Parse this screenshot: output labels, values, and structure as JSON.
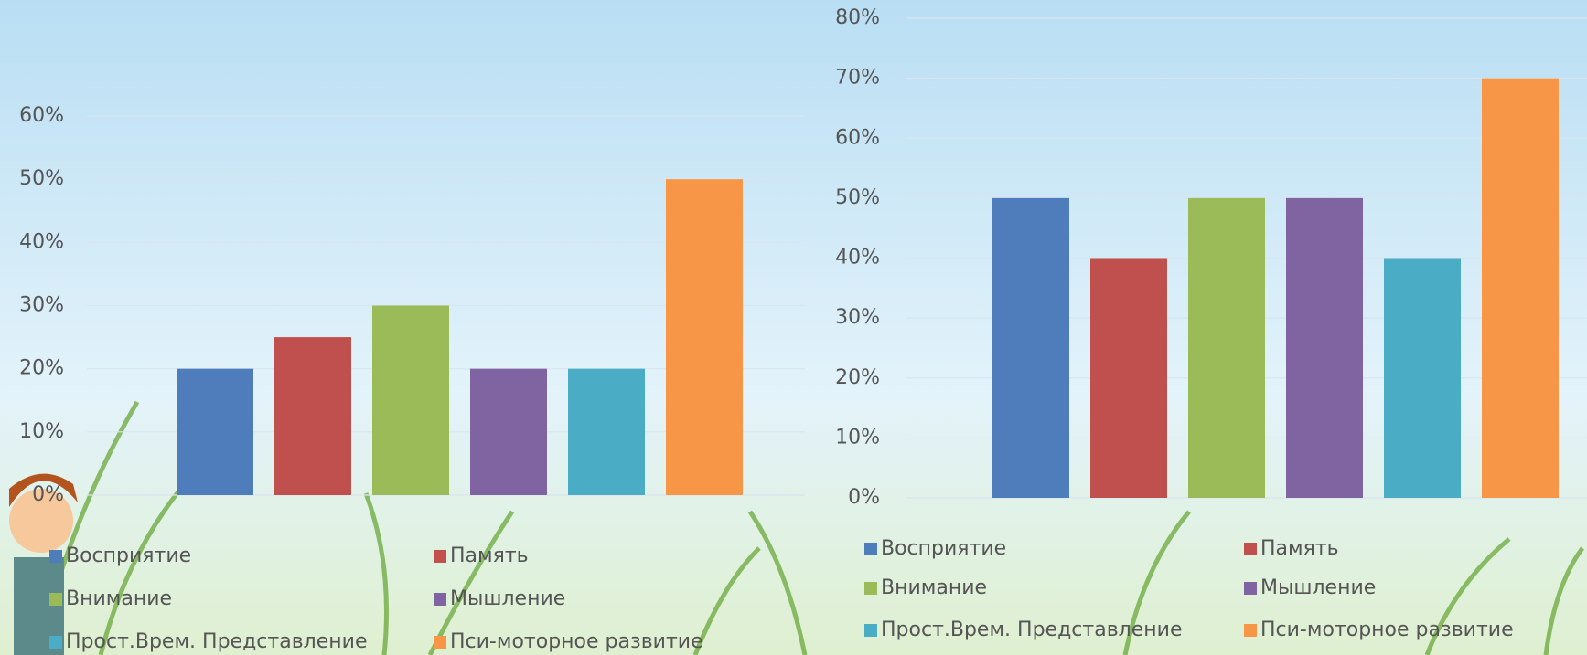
{
  "chart_data": [
    {
      "type": "bar",
      "series": [
        {
          "name": "Восприятие",
          "color": "#4f7dbb",
          "values": [
            20
          ]
        },
        {
          "name": "Память",
          "color": "#c0504d",
          "values": [
            25
          ]
        },
        {
          "name": "Внимание",
          "color": "#9bbb59",
          "values": [
            30
          ]
        },
        {
          "name": "Мышление",
          "color": "#8064a2",
          "values": [
            20
          ]
        },
        {
          "name": "Прост.Врем. Представление",
          "color": "#4bacc6",
          "values": [
            20
          ]
        },
        {
          "name": "Пси-моторное развитие",
          "color": "#f79646",
          "values": [
            50
          ]
        }
      ],
      "ylim": [
        0,
        60
      ],
      "yticks": [
        {
          "value": 0,
          "label": "0%"
        },
        {
          "value": 10,
          "label": "10%"
        },
        {
          "value": 20,
          "label": "20%"
        },
        {
          "value": 30,
          "label": "30%"
        },
        {
          "value": 40,
          "label": "40%"
        },
        {
          "value": 50,
          "label": "50%"
        },
        {
          "value": 60,
          "label": "60%"
        }
      ],
      "grid": true
    },
    {
      "type": "bar",
      "series": [
        {
          "name": "Восприятие",
          "color": "#4f7dbb",
          "values": [
            50
          ]
        },
        {
          "name": "Память",
          "color": "#c0504d",
          "values": [
            40
          ]
        },
        {
          "name": "Внимание",
          "color": "#9bbb59",
          "values": [
            50
          ]
        },
        {
          "name": "Мышление",
          "color": "#8064a2",
          "values": [
            50
          ]
        },
        {
          "name": "Прост.Врем. Представление",
          "color": "#4bacc6",
          "values": [
            40
          ]
        },
        {
          "name": "Пси-моторное развитие",
          "color": "#f79646",
          "values": [
            70
          ]
        }
      ],
      "ylim": [
        0,
        80
      ],
      "yticks": [
        {
          "value": 0,
          "label": "0%"
        },
        {
          "value": 10,
          "label": "10%"
        },
        {
          "value": 20,
          "label": "20%"
        },
        {
          "value": 30,
          "label": "30%"
        },
        {
          "value": 40,
          "label": "40%"
        },
        {
          "value": 50,
          "label": "50%"
        },
        {
          "value": 60,
          "label": "60%"
        },
        {
          "value": 70,
          "label": "70%"
        },
        {
          "value": 80,
          "label": "80%"
        }
      ],
      "grid": true
    }
  ]
}
